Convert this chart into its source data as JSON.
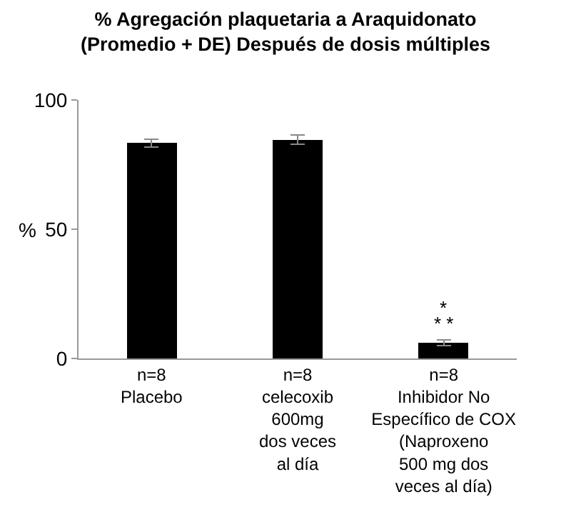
{
  "chart_data": {
    "type": "bar",
    "title": "% Agregación plaquetaria a Araquidonato\n(Promedio + DE) Después de dosis múltiples",
    "ylabel": "%",
    "categories": [
      "n=8\nPlacebo",
      "n=8\ncelecoxib\n600mg\ndos veces\nal día",
      "n=8\nInhibidor No\nEspecífico de COX\n(Naproxeno\n500 mg dos\nveces al día)"
    ],
    "values": [
      83.4,
      84.7,
      6.1
    ],
    "errors": [
      1.5,
      1.7,
      1.1
    ],
    "color": "#000000",
    "ylim": [
      0,
      100
    ],
    "yticks": [
      0,
      50,
      100
    ],
    "grid": false,
    "annotations": [
      "*",
      "* *"
    ]
  }
}
